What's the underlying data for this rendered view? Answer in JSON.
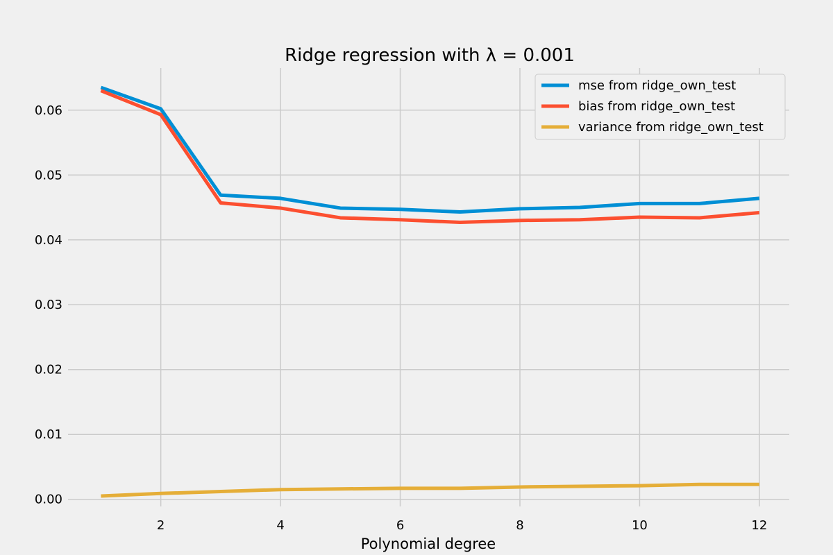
{
  "chart_data": {
    "type": "line",
    "title": "Ridge regression with λ = 0.001",
    "xlabel": "Polynomial degree",
    "ylabel": "",
    "x": [
      1,
      2,
      3,
      4,
      5,
      6,
      7,
      8,
      9,
      10,
      11,
      12
    ],
    "xlim": [
      0.45,
      12.5
    ],
    "ylim": [
      -0.0011,
      0.0665
    ],
    "xticks": [
      2,
      4,
      6,
      8,
      10,
      12
    ],
    "yticks": [
      0.0,
      0.01,
      0.02,
      0.03,
      0.04,
      0.05,
      0.06
    ],
    "ytick_labels": [
      "0.00",
      "0.01",
      "0.02",
      "0.03",
      "0.04",
      "0.05",
      "0.06"
    ],
    "grid": true,
    "legend_position": "top-right",
    "series": [
      {
        "name": "mse from ridge_own_test",
        "color": "#008fd5",
        "values": [
          0.0635,
          0.0602,
          0.0469,
          0.0464,
          0.0449,
          0.0447,
          0.0443,
          0.0448,
          0.045,
          0.0456,
          0.0456,
          0.0464
        ]
      },
      {
        "name": "bias from ridge_own_test",
        "color": "#fc4f30",
        "values": [
          0.063,
          0.0593,
          0.0457,
          0.0449,
          0.0434,
          0.0431,
          0.0427,
          0.043,
          0.0431,
          0.0435,
          0.0434,
          0.0442
        ]
      },
      {
        "name": "variance from ridge_own_test",
        "color": "#e5ae38",
        "values": [
          0.0005,
          0.0009,
          0.0012,
          0.0015,
          0.0016,
          0.0017,
          0.0017,
          0.0019,
          0.002,
          0.0021,
          0.0023,
          0.0023
        ]
      }
    ]
  }
}
